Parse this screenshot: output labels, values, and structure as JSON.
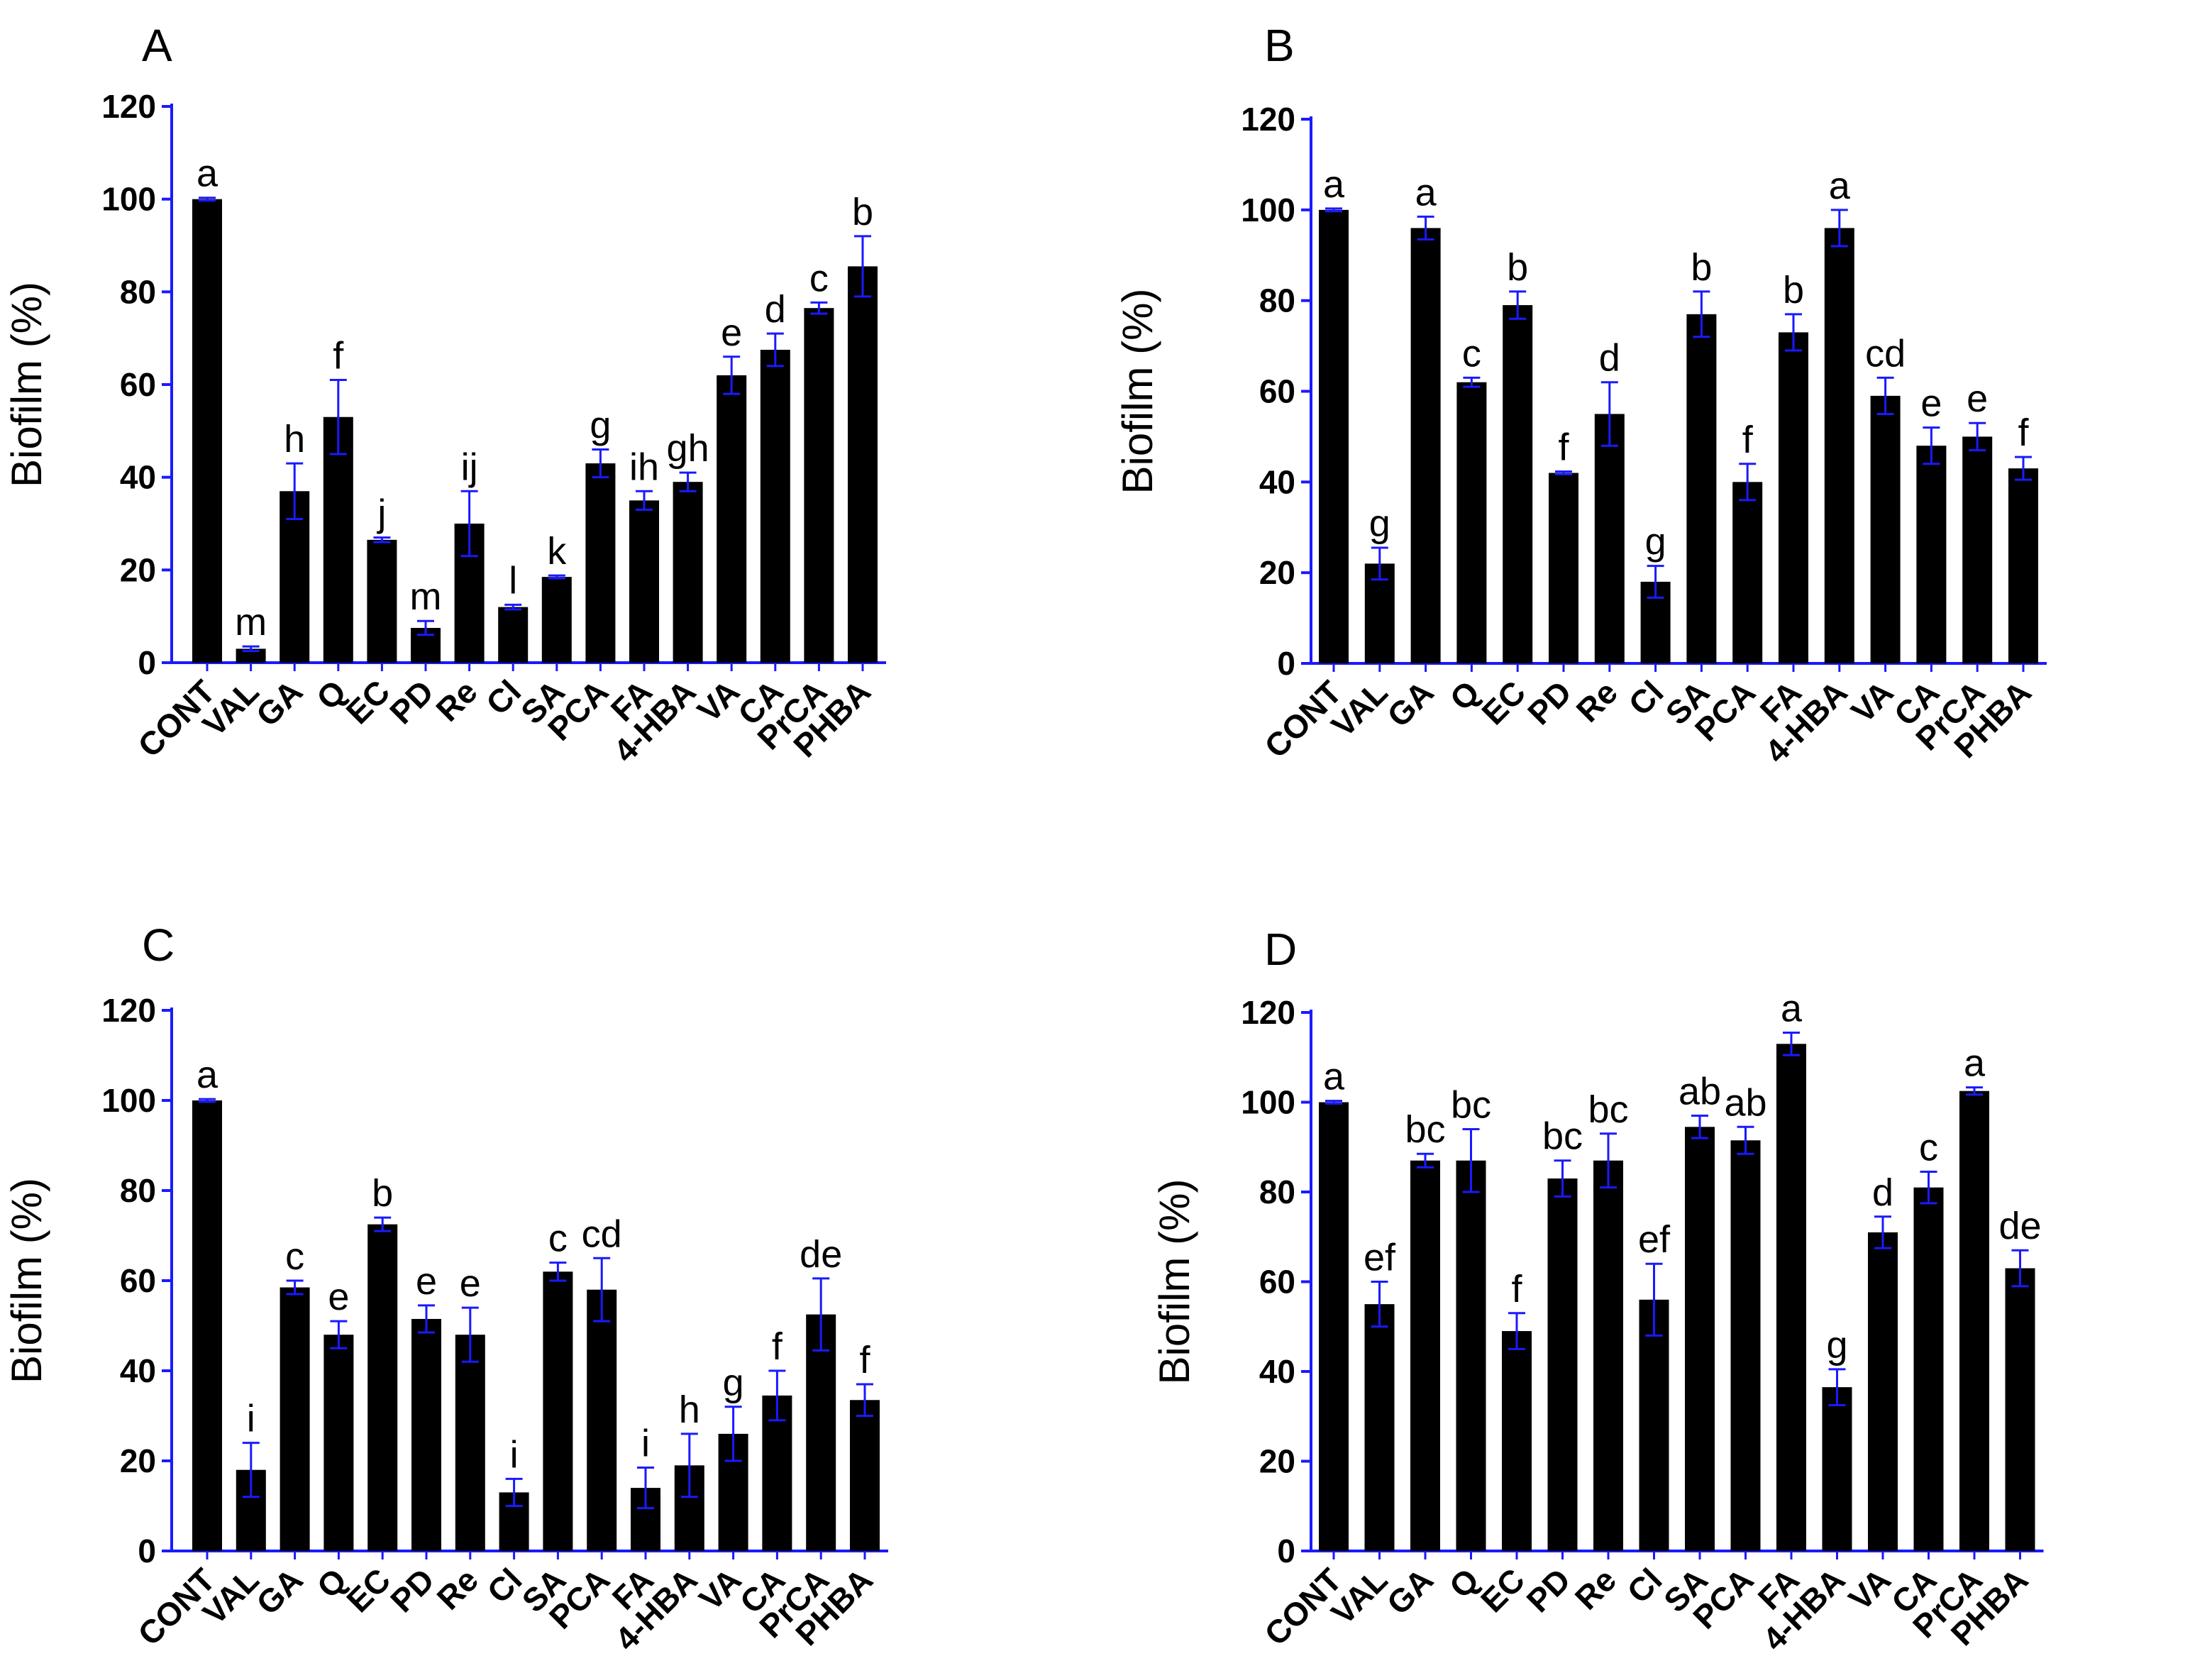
{
  "chart_data": [
    {
      "type": "bar",
      "panel": "A",
      "ylabel": "Biofilm (%)",
      "ylim": [
        0,
        120
      ],
      "yticks": [
        "0",
        "20",
        "40",
        "60",
        "80",
        "100",
        "120"
      ],
      "categories": [
        "CONT",
        "VAL",
        "GA",
        "Q",
        "EC",
        "PD",
        "Re",
        "Cl",
        "SA",
        "PCA",
        "FA",
        "4-HBA",
        "VA",
        "CA",
        "PrCA",
        "PHBA"
      ],
      "values": [
        100,
        3,
        37,
        53,
        26.5,
        7.5,
        30,
        12,
        18.5,
        43,
        35,
        39,
        62,
        67.5,
        76.5,
        85.5
      ],
      "errors": [
        0.3,
        0.5,
        6,
        8,
        0.5,
        1.5,
        7,
        0.5,
        0.3,
        3,
        2,
        2,
        4,
        3.5,
        1.2,
        6.5
      ],
      "significance": [
        "a",
        "m",
        "h",
        "f",
        "j",
        "m",
        "ij",
        "l",
        "k",
        "g",
        "ih",
        "gh",
        "e",
        "d",
        "c",
        "b"
      ],
      "bar_color": "#000000",
      "axis_color": "#1a1aff"
    },
    {
      "type": "bar",
      "panel": "B",
      "ylabel": "Biofilm (%)",
      "ylim": [
        0,
        120
      ],
      "yticks": [
        "0",
        "20",
        "40",
        "60",
        "80",
        "100",
        "120"
      ],
      "categories": [
        "CONT",
        "VAL",
        "GA",
        "Q",
        "EC",
        "PD",
        "Re",
        "Cl",
        "SA",
        "PCA",
        "FA",
        "4-HBA",
        "VA",
        "CA",
        "PrCA",
        "PHBA"
      ],
      "values": [
        100,
        22,
        96,
        62,
        79,
        42,
        55,
        18,
        77,
        40,
        73,
        96,
        59,
        48,
        50,
        43
      ],
      "errors": [
        0.3,
        3.5,
        2.5,
        1,
        3,
        0.3,
        7,
        3.5,
        5,
        4,
        4,
        4,
        4,
        4,
        3,
        2.5
      ],
      "significance": [
        "a",
        "g",
        "a",
        "c",
        "b",
        "f",
        "d",
        "g",
        "b",
        "f",
        "b",
        "a",
        "cd",
        "e",
        "e",
        "f"
      ],
      "bar_color": "#000000",
      "axis_color": "#1a1aff"
    },
    {
      "type": "bar",
      "panel": "C",
      "ylabel": "Biofilm (%)",
      "ylim": [
        0,
        120
      ],
      "yticks": [
        "0",
        "20",
        "40",
        "60",
        "80",
        "100",
        "120"
      ],
      "categories": [
        "CONT",
        "VAL",
        "GA",
        "Q",
        "EC",
        "PD",
        "Re",
        "Cl",
        "SA",
        "PCA",
        "FA",
        "4-HBA",
        "VA",
        "CA",
        "PrCA",
        "PHBA"
      ],
      "values": [
        100,
        18,
        58.5,
        48,
        72.5,
        51.5,
        48,
        13,
        62,
        58,
        14,
        19,
        26,
        34.5,
        52.5,
        33.5
      ],
      "errors": [
        0.3,
        6,
        1.5,
        3,
        1.5,
        3,
        6,
        3,
        2,
        7,
        4.5,
        7,
        6,
        5.5,
        8,
        3.5
      ],
      "significance": [
        "a",
        "i",
        "c",
        "e",
        "b",
        "e",
        "e",
        "i",
        "c",
        "cd",
        "i",
        "h",
        "g",
        "f",
        "de",
        "f"
      ],
      "bar_color": "#000000",
      "axis_color": "#1a1aff"
    },
    {
      "type": "bar",
      "panel": "D",
      "ylabel": "Biofilm (%)",
      "ylim": [
        0,
        120
      ],
      "yticks": [
        "0",
        "20",
        "40",
        "60",
        "80",
        "100",
        "120"
      ],
      "categories": [
        "CONT",
        "VAL",
        "GA",
        "Q",
        "EC",
        "PD",
        "Re",
        "Cl",
        "SA",
        "PCA",
        "FA",
        "4-HBA",
        "VA",
        "CA",
        "PrCA",
        "PHBA"
      ],
      "values": [
        100,
        55,
        87,
        87,
        49,
        83,
        87,
        56,
        94.5,
        91.5,
        113,
        36.5,
        71,
        81,
        102.5,
        63
      ],
      "errors": [
        0.3,
        5,
        1.5,
        7,
        4,
        4,
        6,
        8,
        2.5,
        3,
        2.5,
        4,
        3.5,
        3.5,
        0.8,
        4
      ],
      "significance": [
        "a",
        "ef",
        "bc",
        "bc",
        "f",
        "bc",
        "bc",
        "ef",
        "ab",
        "ab",
        "a",
        "g",
        "d",
        "c",
        "a",
        "de"
      ],
      "bar_color": "#000000",
      "axis_color": "#1a1aff"
    }
  ]
}
